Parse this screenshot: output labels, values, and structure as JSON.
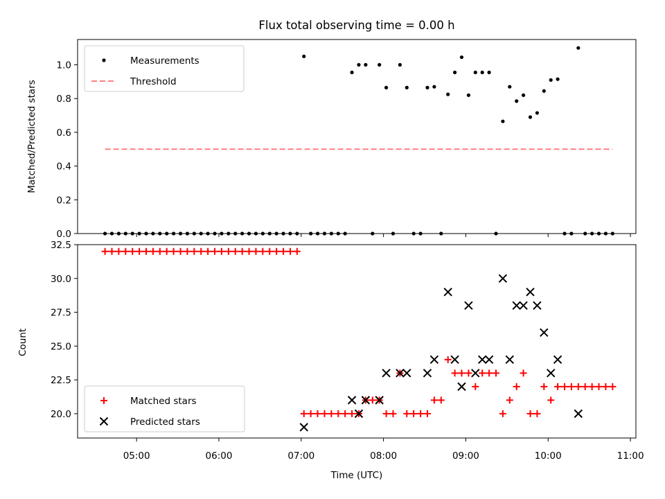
{
  "chart_data": [
    {
      "type": "scatter",
      "title": "Flux total observing time = 0.00 h",
      "xlabel": "",
      "ylabel": "Matched/Predicted stars",
      "xlim": [
        "04:17",
        "11:04"
      ],
      "ylim": [
        0,
        1.15
      ],
      "yticks": [
        0.0,
        0.2,
        0.4,
        0.6,
        0.8,
        1.0
      ],
      "xticks": [
        "05:00",
        "06:00",
        "07:00",
        "08:00",
        "09:00",
        "10:00",
        "11:00"
      ],
      "legend_position": "top-left",
      "threshold": {
        "name": "Threshold",
        "value": 0.5,
        "x": [
          "04:37",
          "10:47"
        ],
        "color": "#ff7f7f"
      },
      "series": [
        {
          "name": "Measurements",
          "color": "#000000",
          "points": [
            [
              "04:37",
              0
            ],
            [
              "04:42",
              0
            ],
            [
              "04:47",
              0
            ],
            [
              "04:52",
              0
            ],
            [
              "04:57",
              0
            ],
            [
              "05:02",
              0
            ],
            [
              "05:07",
              0
            ],
            [
              "05:12",
              0
            ],
            [
              "05:17",
              0
            ],
            [
              "05:22",
              0
            ],
            [
              "05:27",
              0
            ],
            [
              "05:32",
              0
            ],
            [
              "05:37",
              0
            ],
            [
              "05:42",
              0
            ],
            [
              "05:47",
              0
            ],
            [
              "05:52",
              0
            ],
            [
              "05:57",
              0
            ],
            [
              "06:02",
              0
            ],
            [
              "06:07",
              0
            ],
            [
              "06:12",
              0
            ],
            [
              "06:17",
              0
            ],
            [
              "06:22",
              0
            ],
            [
              "06:27",
              0
            ],
            [
              "06:32",
              0
            ],
            [
              "06:37",
              0
            ],
            [
              "06:42",
              0
            ],
            [
              "06:47",
              0
            ],
            [
              "06:52",
              0
            ],
            [
              "06:57",
              0
            ],
            [
              "07:02",
              1.05
            ],
            [
              "07:07",
              0
            ],
            [
              "07:12",
              0
            ],
            [
              "07:17",
              0
            ],
            [
              "07:22",
              0
            ],
            [
              "07:27",
              0
            ],
            [
              "07:32",
              0
            ],
            [
              "07:37",
              0.955
            ],
            [
              "07:42",
              1.0
            ],
            [
              "07:47",
              1.0
            ],
            [
              "07:52",
              0
            ],
            [
              "07:57",
              1.0
            ],
            [
              "08:02",
              0.865
            ],
            [
              "08:07",
              0
            ],
            [
              "08:12",
              1.0
            ],
            [
              "08:17",
              0.865
            ],
            [
              "08:22",
              0
            ],
            [
              "08:27",
              0
            ],
            [
              "08:32",
              0.865
            ],
            [
              "08:37",
              0.87
            ],
            [
              "08:42",
              0
            ],
            [
              "08:47",
              0.825
            ],
            [
              "08:52",
              0.955
            ],
            [
              "08:57",
              1.045
            ],
            [
              "09:02",
              0.82
            ],
            [
              "09:07",
              0.955
            ],
            [
              "09:12",
              0.955
            ],
            [
              "09:17",
              0.955
            ],
            [
              "09:22",
              0
            ],
            [
              "09:27",
              0.665
            ],
            [
              "09:32",
              0.87
            ],
            [
              "09:37",
              0.785
            ],
            [
              "09:42",
              0.82
            ],
            [
              "09:47",
              0.69
            ],
            [
              "09:52",
              0.715
            ],
            [
              "09:57",
              0.845
            ],
            [
              "10:02",
              0.91
            ],
            [
              "10:07",
              0.915
            ],
            [
              "10:12",
              0
            ],
            [
              "10:17",
              0
            ],
            [
              "10:22",
              1.1
            ],
            [
              "10:27",
              0
            ],
            [
              "10:32",
              0
            ],
            [
              "10:37",
              0
            ],
            [
              "10:42",
              0
            ],
            [
              "10:47",
              0
            ]
          ]
        }
      ]
    },
    {
      "type": "scatter",
      "title": "",
      "xlabel": "Time (UTC)",
      "ylabel": "Count",
      "xlim": [
        "04:17",
        "11:04"
      ],
      "ylim": [
        18.2,
        32.5
      ],
      "yticks": [
        20.0,
        22.5,
        25.0,
        27.5,
        30.0,
        32.5
      ],
      "xticks": [
        "05:00",
        "06:00",
        "07:00",
        "08:00",
        "09:00",
        "10:00",
        "11:00"
      ],
      "legend_position": "bottom-left",
      "series": [
        {
          "name": "Matched stars",
          "color": "#ff0000",
          "marker": "plus",
          "points": [
            [
              "04:37",
              32
            ],
            [
              "04:42",
              32
            ],
            [
              "04:47",
              32
            ],
            [
              "04:52",
              32
            ],
            [
              "04:57",
              32
            ],
            [
              "05:02",
              32
            ],
            [
              "05:07",
              32
            ],
            [
              "05:12",
              32
            ],
            [
              "05:17",
              32
            ],
            [
              "05:22",
              32
            ],
            [
              "05:27",
              32
            ],
            [
              "05:32",
              32
            ],
            [
              "05:37",
              32
            ],
            [
              "05:42",
              32
            ],
            [
              "05:47",
              32
            ],
            [
              "05:52",
              32
            ],
            [
              "05:57",
              32
            ],
            [
              "06:02",
              32
            ],
            [
              "06:07",
              32
            ],
            [
              "06:12",
              32
            ],
            [
              "06:17",
              32
            ],
            [
              "06:22",
              32
            ],
            [
              "06:27",
              32
            ],
            [
              "06:32",
              32
            ],
            [
              "06:37",
              32
            ],
            [
              "06:42",
              32
            ],
            [
              "06:47",
              32
            ],
            [
              "06:52",
              32
            ],
            [
              "06:57",
              32
            ],
            [
              "07:02",
              20
            ],
            [
              "07:07",
              20
            ],
            [
              "07:12",
              20
            ],
            [
              "07:17",
              20
            ],
            [
              "07:22",
              20
            ],
            [
              "07:27",
              20
            ],
            [
              "07:32",
              20
            ],
            [
              "07:37",
              20
            ],
            [
              "07:42",
              20
            ],
            [
              "07:47",
              21
            ],
            [
              "07:52",
              21
            ],
            [
              "07:57",
              21
            ],
            [
              "08:02",
              20
            ],
            [
              "08:07",
              20
            ],
            [
              "08:12",
              23
            ],
            [
              "08:17",
              20
            ],
            [
              "08:22",
              20
            ],
            [
              "08:27",
              20
            ],
            [
              "08:32",
              20
            ],
            [
              "08:37",
              21
            ],
            [
              "08:42",
              21
            ],
            [
              "08:47",
              24
            ],
            [
              "08:52",
              23
            ],
            [
              "08:57",
              23
            ],
            [
              "09:02",
              23
            ],
            [
              "09:07",
              22
            ],
            [
              "09:12",
              23
            ],
            [
              "09:17",
              23
            ],
            [
              "09:22",
              23
            ],
            [
              "09:27",
              20
            ],
            [
              "09:32",
              21
            ],
            [
              "09:37",
              22
            ],
            [
              "09:42",
              23
            ],
            [
              "09:47",
              20
            ],
            [
              "09:52",
              20
            ],
            [
              "09:57",
              22
            ],
            [
              "10:02",
              21
            ],
            [
              "10:07",
              22
            ],
            [
              "10:12",
              22
            ],
            [
              "10:17",
              22
            ],
            [
              "10:22",
              22
            ],
            [
              "10:27",
              22
            ],
            [
              "10:32",
              22
            ],
            [
              "10:37",
              22
            ],
            [
              "10:42",
              22
            ],
            [
              "10:47",
              22
            ]
          ]
        },
        {
          "name": "Predicted stars",
          "color": "#000000",
          "marker": "x",
          "points": [
            [
              "07:02",
              19
            ],
            [
              "07:37",
              21
            ],
            [
              "07:42",
              20
            ],
            [
              "07:47",
              21
            ],
            [
              "07:57",
              21
            ],
            [
              "08:02",
              23
            ],
            [
              "08:12",
              23
            ],
            [
              "08:17",
              23
            ],
            [
              "08:32",
              23
            ],
            [
              "08:37",
              24
            ],
            [
              "08:47",
              29
            ],
            [
              "08:52",
              24
            ],
            [
              "08:57",
              22
            ],
            [
              "09:02",
              28
            ],
            [
              "09:07",
              23
            ],
            [
              "09:12",
              24
            ],
            [
              "09:17",
              24
            ],
            [
              "09:27",
              30
            ],
            [
              "09:32",
              24
            ],
            [
              "09:37",
              28
            ],
            [
              "09:42",
              28
            ],
            [
              "09:47",
              29
            ],
            [
              "09:52",
              28
            ],
            [
              "09:57",
              26
            ],
            [
              "10:02",
              23
            ],
            [
              "10:07",
              24
            ],
            [
              "10:22",
              20
            ]
          ]
        }
      ]
    }
  ]
}
